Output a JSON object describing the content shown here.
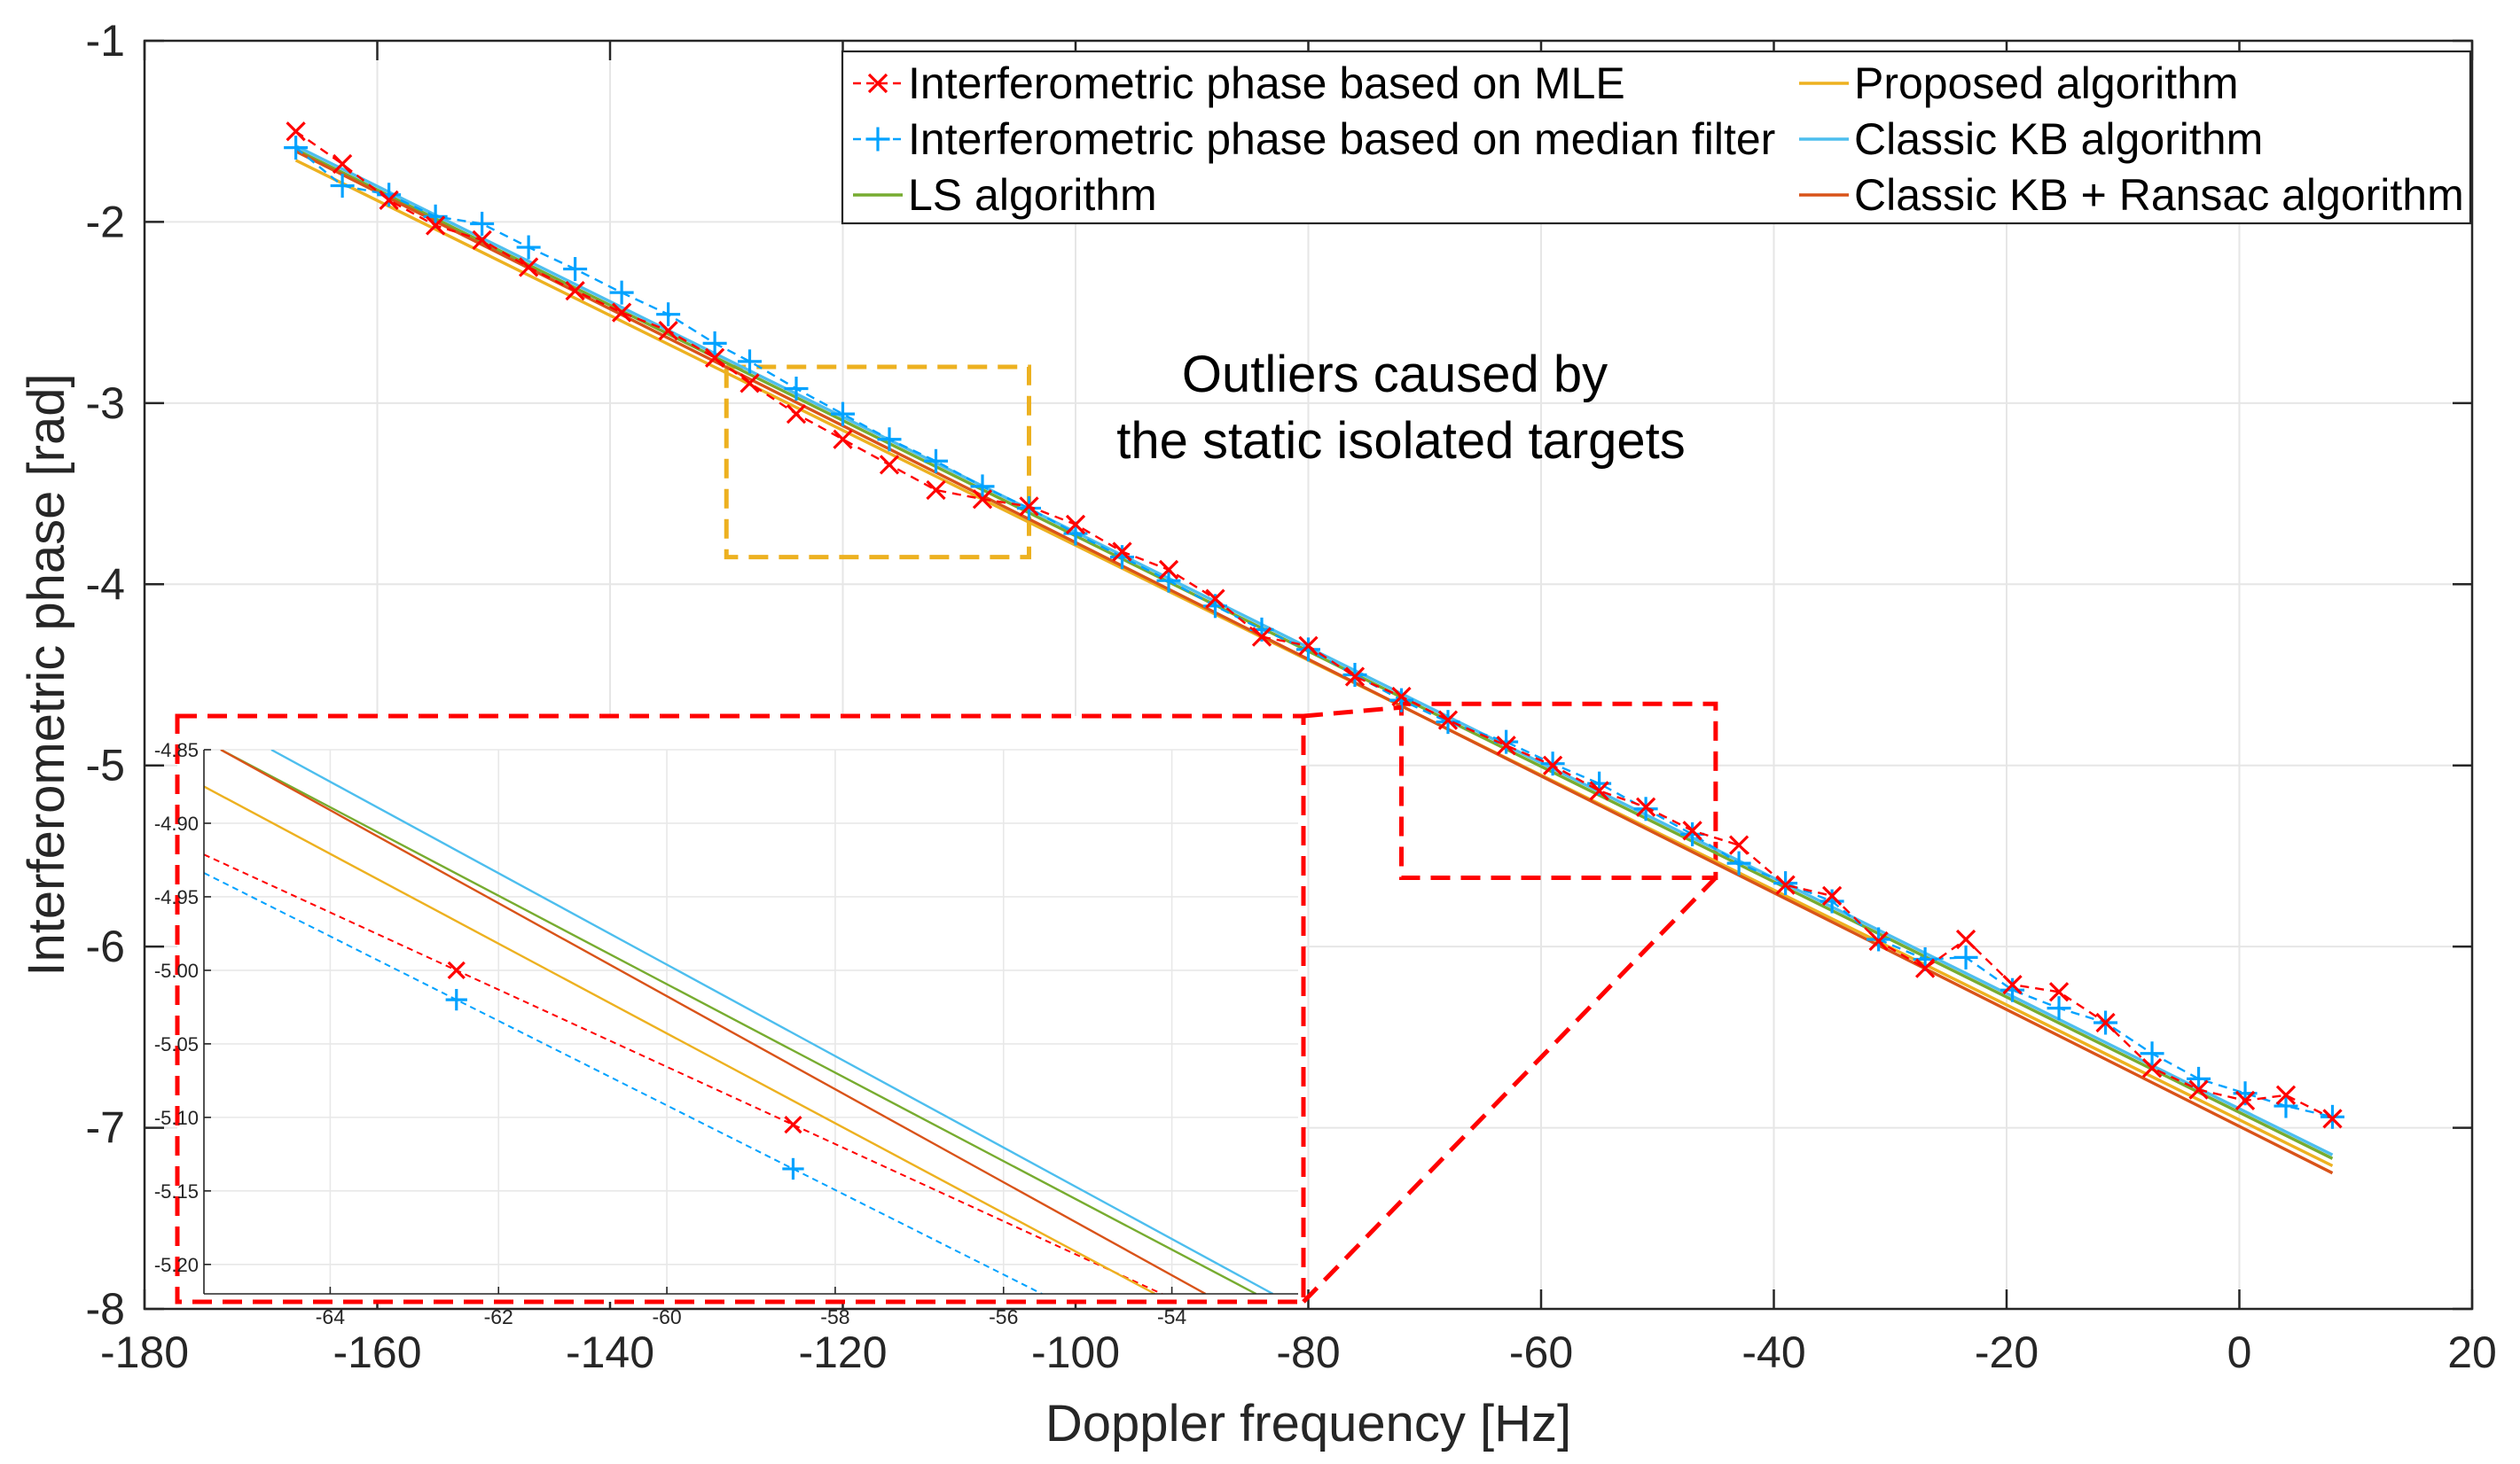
{
  "chart_data": {
    "type": "line",
    "title": "",
    "xlabel": "Doppler frequency [Hz]",
    "ylabel": "Interferometric phase [rad]",
    "xlim": [
      -180,
      20
    ],
    "ylim": [
      -8,
      -1
    ],
    "xticks": [
      -180,
      -160,
      -140,
      -120,
      -100,
      -80,
      -60,
      -40,
      -20,
      0,
      20
    ],
    "yticks": [
      -1,
      -2,
      -3,
      -4,
      -5,
      -6,
      -7,
      -8
    ],
    "grid": true,
    "legend_position": "top-right",
    "annotation": "Outliers caused by\nthe static isolated targets",
    "annotation_lines": [
      "Outliers caused by",
      "the static isolated targets"
    ],
    "series": [
      {
        "name": "Interferometric phase based on MLE",
        "kind": "points-dashed",
        "marker": "x",
        "color": "#ff0000",
        "x": [
          -167,
          -163,
          -159,
          -155,
          -151,
          -147,
          -143,
          -139,
          -135,
          -131,
          -128,
          -124,
          -120,
          -116,
          -112,
          -108,
          -104,
          -100,
          -96,
          -92,
          -88,
          -84,
          -80,
          -76,
          -72,
          -68,
          -63,
          -59,
          -55,
          -51,
          -47,
          -43,
          -39,
          -35,
          -31,
          -27,
          -23.5,
          -19.5,
          -15.5,
          -11.5,
          -7.5,
          -3.5,
          0.5,
          4,
          8
        ],
        "y": [
          -1.5,
          -1.68,
          -1.88,
          -2.02,
          -2.1,
          -2.25,
          -2.38,
          -2.5,
          -2.6,
          -2.75,
          -2.89,
          -3.06,
          -3.2,
          -3.34,
          -3.48,
          -3.53,
          -3.57,
          -3.67,
          -3.82,
          -3.92,
          -4.08,
          -4.29,
          -4.34,
          -4.51,
          -4.62,
          -4.75,
          -4.89,
          -5.0,
          -5.14,
          -5.23,
          -5.36,
          -5.44,
          -5.66,
          -5.72,
          -5.97,
          -6.12,
          -5.96,
          -6.21,
          -6.25,
          -6.42,
          -6.67,
          -6.79,
          -6.85,
          -6.82,
          -6.95
        ]
      },
      {
        "name": "Interferometric phase based on median filter",
        "kind": "points-dashed",
        "marker": "+",
        "color": "#00a2ff",
        "x": [
          -167,
          -163,
          -159,
          -155,
          -151,
          -147,
          -143,
          -139,
          -135,
          -131,
          -128,
          -124,
          -120,
          -116,
          -112,
          -108,
          -104,
          -100,
          -96,
          -92,
          -88,
          -84,
          -80,
          -76,
          -72,
          -68,
          -63,
          -59,
          -55,
          -51,
          -47,
          -43,
          -39,
          -35,
          -31,
          -27,
          -23.5,
          -19.5,
          -15.5,
          -11.5,
          -7.5,
          -3.5,
          0.5,
          4,
          8
        ],
        "y": [
          -1.59,
          -1.8,
          -1.85,
          -1.97,
          -2.01,
          -2.14,
          -2.26,
          -2.39,
          -2.51,
          -2.67,
          -2.77,
          -2.92,
          -3.06,
          -3.2,
          -3.32,
          -3.46,
          -3.58,
          -3.72,
          -3.85,
          -3.98,
          -4.12,
          -4.25,
          -4.36,
          -4.5,
          -4.64,
          -4.76,
          -4.87,
          -4.99,
          -5.1,
          -5.24,
          -5.38,
          -5.54,
          -5.65,
          -5.75,
          -5.96,
          -6.07,
          -6.06,
          -6.24,
          -6.34,
          -6.42,
          -6.59,
          -6.73,
          -6.81,
          -6.88,
          -6.94
        ]
      },
      {
        "name": "Proposed algorithm",
        "kind": "line",
        "color": "#edb120",
        "x": [
          -167,
          8
        ],
        "y": [
          -1.66,
          -7.21
        ]
      },
      {
        "name": "Classic KB algorithm",
        "kind": "line",
        "color": "#4dbeee",
        "x": [
          -167,
          8
        ],
        "y": [
          -1.58,
          -7.15
        ]
      },
      {
        "name": "LS algorithm",
        "kind": "line",
        "color": "#77ac30",
        "x": [
          -167,
          8
        ],
        "y": [
          -1.6,
          -7.17
        ]
      },
      {
        "name": "Classic KB + Ransac algorithm",
        "kind": "line",
        "color": "#d95319",
        "x": [
          -167,
          8
        ],
        "y": [
          -1.61,
          -7.25
        ]
      }
    ],
    "legend": {
      "left_column": [
        "Interferometric phase based on MLE",
        "Interferometric phase based on median filter",
        "LS algorithm"
      ],
      "right_column": [
        "Proposed algorithm",
        "Classic KB algorithm",
        "Classic KB + Ransac algorithm"
      ]
    },
    "highlight_boxes": [
      {
        "name": "outlier-box",
        "color": "#edb120",
        "xrange": [
          -130,
          -104
        ],
        "yrange": [
          -3.85,
          -2.8
        ]
      },
      {
        "name": "zoom-source-box",
        "color": "#ff0000",
        "xrange": [
          -72,
          -45
        ],
        "yrange": [
          -5.62,
          -4.66
        ]
      }
    ],
    "inset": {
      "description": "Zoomed region",
      "xlim": [
        -65.5,
        -52.5
      ],
      "ylim": [
        -5.22,
        -4.85
      ],
      "xticks": [
        -64,
        -62,
        -60,
        -58,
        -56,
        -54
      ],
      "yticks": [
        -4.85,
        -4.9,
        -4.95,
        -5.0,
        -5.05,
        -5.1,
        -5.15,
        -5.2
      ],
      "ytick_labels": [
        "-4.85",
        "-4.90",
        "-4.95",
        "-5.00",
        "-5.05",
        "-5.10",
        "-5.15",
        "-5.20"
      ],
      "series": [
        {
          "name": "MLE",
          "color": "#ff0000",
          "kind": "points-dashed",
          "marker": "x",
          "x": [
            -62.5,
            -58.5
          ],
          "y": [
            -5.0,
            -5.105
          ]
        },
        {
          "name": "Median filter",
          "color": "#00a2ff",
          "kind": "points-dashed",
          "marker": "+",
          "x": [
            -62.5,
            -58.5
          ],
          "y": [
            -5.02,
            -5.135
          ]
        },
        {
          "name": "Proposed algorithm",
          "color": "#edb120",
          "kind": "line",
          "x": [
            -65.5,
            -54.2
          ],
          "y": [
            -4.875,
            -5.22
          ]
        },
        {
          "name": "Classic KB algorithm",
          "color": "#4dbeee",
          "kind": "line",
          "x": [
            -64.7,
            -52.8
          ],
          "y": [
            -4.85,
            -5.22
          ]
        },
        {
          "name": "LS algorithm",
          "color": "#77ac30",
          "kind": "line",
          "x": [
            -65.3,
            -53.0
          ],
          "y": [
            -4.85,
            -5.22
          ]
        },
        {
          "name": "Classic KB + Ransac algorithm",
          "color": "#d95319",
          "kind": "line",
          "x": [
            -65.3,
            -53.6
          ],
          "y": [
            -4.85,
            -5.22
          ]
        }
      ]
    }
  }
}
